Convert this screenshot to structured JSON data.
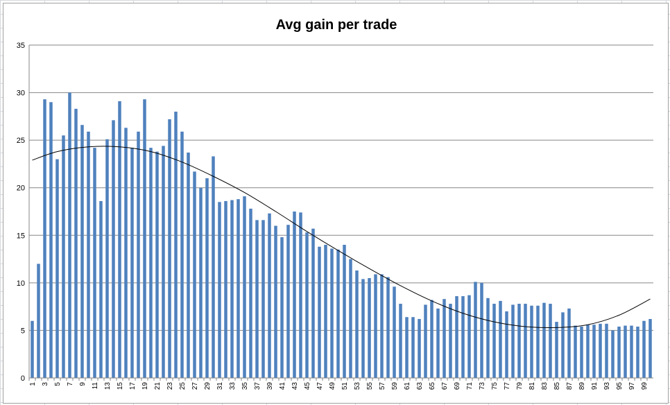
{
  "chart_data": {
    "type": "bar",
    "title": "Avg gain per trade",
    "ylim": [
      0,
      35
    ],
    "yticks": [
      0,
      5,
      10,
      15,
      20,
      25,
      30,
      35
    ],
    "categories": [
      1,
      2,
      3,
      4,
      5,
      6,
      7,
      8,
      9,
      10,
      11,
      12,
      13,
      14,
      15,
      16,
      17,
      18,
      19,
      20,
      21,
      22,
      23,
      24,
      25,
      26,
      27,
      28,
      29,
      30,
      31,
      32,
      33,
      34,
      35,
      36,
      37,
      38,
      39,
      40,
      41,
      42,
      43,
      44,
      45,
      46,
      47,
      48,
      49,
      50,
      51,
      52,
      53,
      54,
      55,
      56,
      57,
      58,
      59,
      60,
      61,
      62,
      63,
      64,
      65,
      66,
      67,
      68,
      69,
      70,
      71,
      72,
      73,
      74,
      75,
      76,
      77,
      78,
      79,
      80,
      81,
      82,
      83,
      84,
      85,
      86,
      87,
      88,
      89,
      90,
      91,
      92,
      93,
      94,
      95,
      96,
      97,
      98,
      99,
      100
    ],
    "xtick_labels": [
      1,
      3,
      5,
      7,
      9,
      11,
      13,
      15,
      17,
      19,
      21,
      23,
      25,
      27,
      29,
      31,
      33,
      35,
      37,
      39,
      41,
      43,
      45,
      47,
      49,
      51,
      53,
      55,
      57,
      59,
      61,
      63,
      65,
      67,
      69,
      71,
      73,
      75,
      77,
      79,
      81,
      83,
      85,
      87,
      89,
      91,
      93,
      95,
      97,
      99
    ],
    "values": [
      6.0,
      12.0,
      29.3,
      29.0,
      23.0,
      25.5,
      30.0,
      28.3,
      26.6,
      25.9,
      24.2,
      18.6,
      25.1,
      27.1,
      29.1,
      26.3,
      24.2,
      25.9,
      29.3,
      24.2,
      23.8,
      24.4,
      27.2,
      28.0,
      25.9,
      23.7,
      21.7,
      20.0,
      21.0,
      23.3,
      18.5,
      18.6,
      18.7,
      18.8,
      19.1,
      17.8,
      16.6,
      16.6,
      17.3,
      16.0,
      14.8,
      16.1,
      17.5,
      17.4,
      15.3,
      15.7,
      13.8,
      14.0,
      13.6,
      13.5,
      14.0,
      12.5,
      11.3,
      10.4,
      10.5,
      10.9,
      10.9,
      10.6,
      9.6,
      7.8,
      6.4,
      6.4,
      6.2,
      7.7,
      8.2,
      7.3,
      8.3,
      7.8,
      8.6,
      8.6,
      8.7,
      10.1,
      10.0,
      8.4,
      7.8,
      8.1,
      7.0,
      7.7,
      7.8,
      7.8,
      7.6,
      7.6,
      7.9,
      7.8,
      5.9,
      6.9,
      7.3,
      5.5,
      5.4,
      5.6,
      5.6,
      5.7,
      5.7,
      5.0,
      5.4,
      5.5,
      5.5,
      5.4,
      6.0,
      6.2
    ],
    "trendline": {
      "x": [
        1,
        5,
        10,
        15,
        20,
        25,
        30,
        35,
        40,
        45,
        50,
        55,
        60,
        65,
        70,
        75,
        80,
        85,
        90,
        95,
        100
      ],
      "y": [
        22.9,
        23.8,
        24.3,
        24.3,
        23.8,
        22.7,
        21.2,
        19.5,
        17.5,
        15.4,
        13.4,
        11.5,
        9.7,
        8.1,
        6.8,
        5.9,
        5.4,
        5.3,
        5.6,
        6.6,
        8.3
      ]
    },
    "bar_color": "#4f81bd",
    "trend_color": "#000000",
    "grid": true
  }
}
